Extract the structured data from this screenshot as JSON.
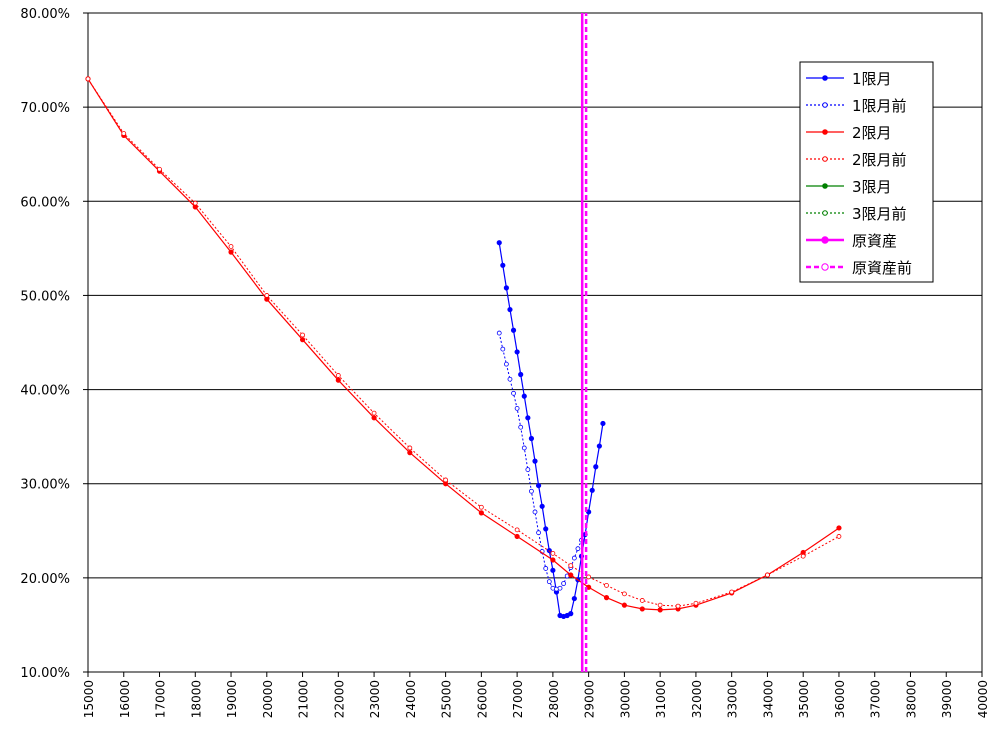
{
  "chart_data": {
    "type": "line",
    "title": "",
    "xlabel": "",
    "ylabel": "",
    "xlim": [
      15000,
      40000
    ],
    "ylim": [
      10,
      80
    ],
    "x_ticks": [
      "15000",
      "16000",
      "17000",
      "18000",
      "19000",
      "20000",
      "21000",
      "22000",
      "23000",
      "24000",
      "25000",
      "26000",
      "27000",
      "28000",
      "29000",
      "30000",
      "31000",
      "32000",
      "33000",
      "34000",
      "35000",
      "36000",
      "37000",
      "38000",
      "39000",
      "40000"
    ],
    "y_ticks": [
      "10.00%",
      "20.00%",
      "30.00%",
      "40.00%",
      "50.00%",
      "60.00%",
      "70.00%",
      "80.00%"
    ],
    "y_tick_values": [
      10,
      20,
      30,
      40,
      50,
      60,
      70,
      80
    ],
    "horizontal_grid": true,
    "legend_position": "top-right",
    "colors": {
      "blue": "#0000ff",
      "red": "#ff0000",
      "green": "#008000",
      "magenta": "#ff00ff",
      "plot_border": "#000000"
    },
    "series": [
      {
        "name": "1限月",
        "color": "#0000ff",
        "style": "solid",
        "marker": "filled",
        "x": [
          26500,
          26600,
          26700,
          26800,
          26900,
          27000,
          27100,
          27200,
          27300,
          27400,
          27500,
          27600,
          27700,
          27800,
          27900,
          28000,
          28100,
          28200,
          28300,
          28400,
          28500,
          28600,
          28700,
          28800,
          28900,
          29000,
          29100,
          29200,
          29300,
          29400,
          29500,
          29600,
          29700
        ],
        "y": [
          55.6,
          53.2,
          50.8,
          48.5,
          46.3,
          44.0,
          41.6,
          39.3,
          37.0,
          34.8,
          32.4,
          29.8,
          27.6,
          25.2,
          22.9,
          20.8,
          18.5,
          16.0,
          15.9,
          16.0,
          16.2,
          17.8,
          19.8,
          22.3,
          24.6,
          27.0,
          29.3,
          31.8,
          34.0,
          36.4,
          null,
          null,
          null
        ]
      },
      {
        "name": "1限月前",
        "color": "#0000ff",
        "style": "dotted",
        "marker": "open",
        "x": [
          26500,
          26600,
          26700,
          26800,
          26900,
          27000,
          27100,
          27200,
          27300,
          27400,
          27500,
          27600,
          27700,
          27800,
          27900,
          28000,
          28100,
          28200,
          28300,
          28400,
          28500,
          28600,
          28700,
          28800,
          28900
        ],
        "y": [
          46.0,
          44.3,
          42.7,
          41.1,
          39.6,
          38.0,
          36.0,
          33.8,
          31.5,
          29.2,
          27.0,
          24.8,
          22.8,
          21.0,
          19.6,
          18.9,
          18.8,
          18.9,
          19.4,
          20.2,
          21.1,
          22.1,
          23.1,
          24.0,
          null
        ]
      },
      {
        "name": "2限月",
        "color": "#ff0000",
        "style": "solid",
        "marker": "filled",
        "x": [
          15000,
          16000,
          17000,
          18000,
          19000,
          20000,
          21000,
          22000,
          23000,
          24000,
          25000,
          26000,
          27000,
          28000,
          28500,
          29000,
          29500,
          30000,
          30500,
          31000,
          31500,
          32000,
          33000,
          34000,
          35000,
          36000
        ],
        "y": [
          73.0,
          67.0,
          63.2,
          59.4,
          54.6,
          49.6,
          45.3,
          41.0,
          37.0,
          33.3,
          30.0,
          26.9,
          24.4,
          21.9,
          20.3,
          19.0,
          17.9,
          17.1,
          16.7,
          16.6,
          16.7,
          17.1,
          18.4,
          20.3,
          22.7,
          25.3
        ]
      },
      {
        "name": "2限月前",
        "color": "#ff0000",
        "style": "dotted",
        "marker": "open",
        "x": [
          15000,
          16000,
          17000,
          18000,
          19000,
          20000,
          21000,
          22000,
          23000,
          24000,
          25000,
          26000,
          27000,
          28000,
          28500,
          29000,
          29500,
          30000,
          30500,
          31000,
          31500,
          32000,
          33000,
          34000,
          35000,
          36000
        ],
        "y": [
          73.0,
          67.2,
          63.4,
          59.8,
          55.2,
          50.0,
          45.8,
          41.5,
          37.5,
          33.8,
          30.4,
          27.5,
          25.1,
          22.6,
          21.3,
          20.1,
          19.2,
          18.3,
          17.6,
          17.1,
          17.0,
          17.3,
          18.5,
          20.3,
          22.3,
          24.4
        ]
      },
      {
        "name": "3限月",
        "color": "#008000",
        "style": "solid",
        "marker": "filled",
        "x": [],
        "y": []
      },
      {
        "name": "3限月前",
        "color": "#008000",
        "style": "dotted",
        "marker": "open",
        "x": [],
        "y": []
      },
      {
        "name": "原資産",
        "color": "#ff00ff",
        "style": "solid",
        "marker": "filled",
        "x": [
          28820,
          28820
        ],
        "y": [
          10,
          80
        ]
      },
      {
        "name": "原資産前",
        "color": "#ff00ff",
        "style": "dashed",
        "marker": "open",
        "x": [
          28930,
          28930
        ],
        "y": [
          10,
          80
        ]
      }
    ]
  }
}
